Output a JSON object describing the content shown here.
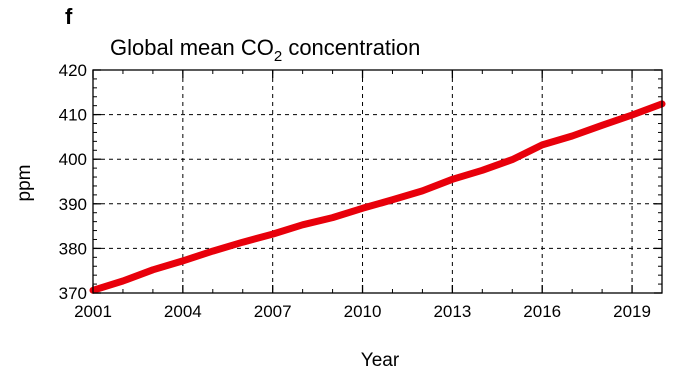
{
  "chart_data": {
    "type": "line",
    "panel_label": "f",
    "title": {
      "prefix": "Global mean CO",
      "subscript": "2",
      "suffix": " concentration"
    },
    "xlabel": "Year",
    "ylabel": "ppm",
    "xlim": [
      2001,
      2020
    ],
    "ylim": [
      370,
      420
    ],
    "x_ticks": [
      2001,
      2004,
      2007,
      2010,
      2013,
      2016,
      2019
    ],
    "x_tick_labels": [
      "2001",
      "2004",
      "2007",
      "2010",
      "2013",
      "2016",
      "2019"
    ],
    "y_ticks": [
      370,
      380,
      390,
      400,
      410,
      420
    ],
    "y_tick_labels": [
      "370",
      "380",
      "390",
      "400",
      "410",
      "420"
    ],
    "grid": true,
    "series": [
      {
        "color": "#e8000b",
        "x": [
          2001,
          2002,
          2003,
          2004,
          2005,
          2006,
          2007,
          2008,
          2009,
          2010,
          2011,
          2012,
          2013,
          2014,
          2015,
          2016,
          2017,
          2018,
          2019,
          2020
        ],
        "y": [
          370.6,
          372.7,
          375.2,
          377.2,
          379.4,
          381.4,
          383.2,
          385.3,
          386.9,
          389.0,
          390.9,
          392.9,
          395.5,
          397.5,
          399.9,
          403.2,
          405.2,
          407.6,
          409.9,
          412.4
        ]
      }
    ]
  }
}
